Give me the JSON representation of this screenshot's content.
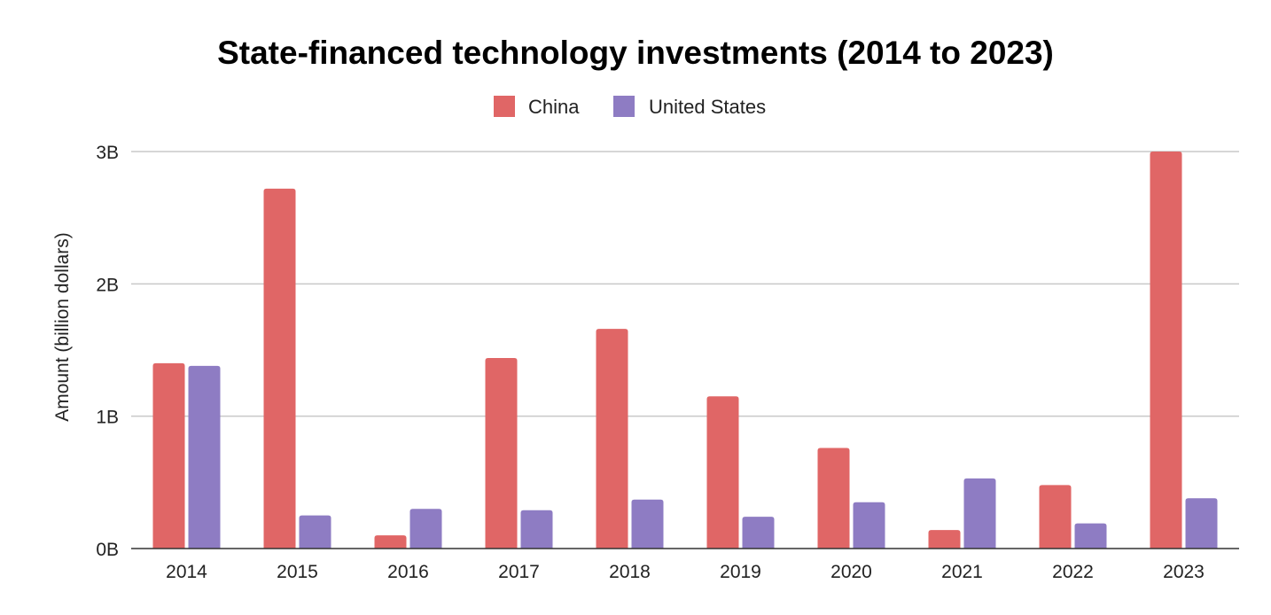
{
  "chart_data": {
    "type": "bar",
    "title": "State-financed technology investments (2014 to 2023)",
    "xlabel": "",
    "ylabel": "Amount (billion dollars)",
    "categories": [
      "2014",
      "2015",
      "2016",
      "2017",
      "2018",
      "2019",
      "2020",
      "2021",
      "2022",
      "2023"
    ],
    "series": [
      {
        "name": "China",
        "color": "#e06666",
        "values": [
          1.4,
          2.72,
          0.1,
          1.44,
          1.66,
          1.15,
          0.76,
          0.14,
          0.48,
          3.0
        ]
      },
      {
        "name": "United States",
        "color": "#8e7cc3",
        "values": [
          1.38,
          0.25,
          0.3,
          0.29,
          0.37,
          0.24,
          0.35,
          0.53,
          0.19,
          0.38
        ]
      }
    ],
    "ylim": [
      0,
      3
    ],
    "yticks": [
      0,
      1,
      2,
      3
    ],
    "ytick_labels": [
      "0B",
      "1B",
      "2B",
      "3B"
    ],
    "grid": true,
    "legend_position": "top-center"
  }
}
